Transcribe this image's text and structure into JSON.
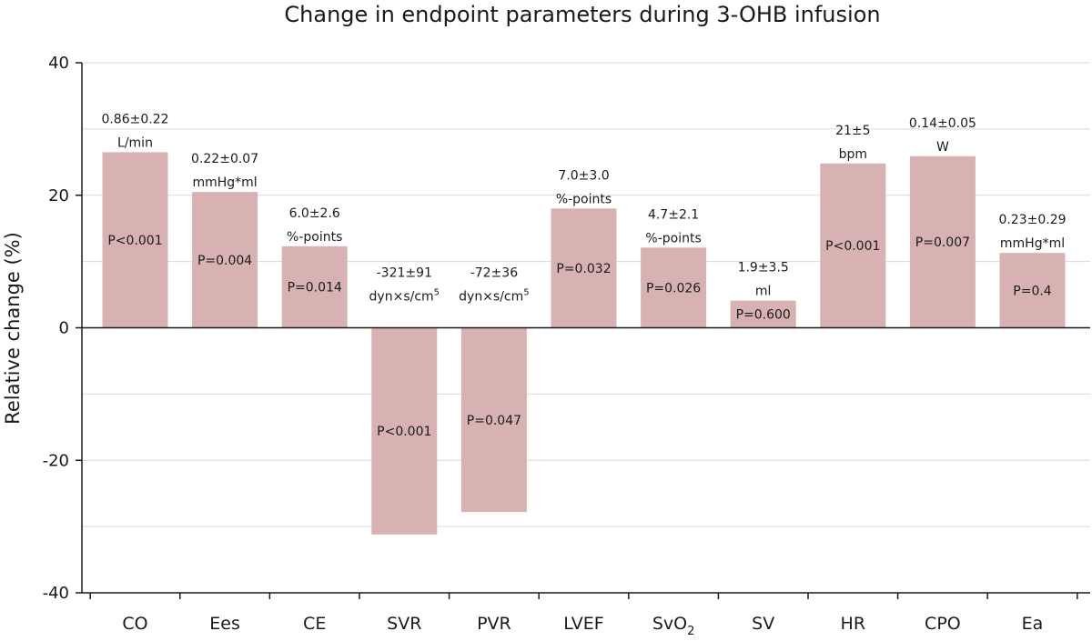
{
  "chart_data": {
    "type": "bar",
    "title": "Change in endpoint parameters during 3-OHB infusion",
    "ylabel": "Relative change (%)",
    "xlabel": "",
    "ylim": [
      -40,
      40
    ],
    "yticks": [
      -40,
      -20,
      0,
      20,
      40
    ],
    "ytick_labels": [
      "-40",
      "-20",
      "0",
      "20",
      "40"
    ],
    "grid": true,
    "bar_color": "#d8b2b2",
    "categories": [
      {
        "label": "CO",
        "sub": ""
      },
      {
        "label": "Ees",
        "sub": ""
      },
      {
        "label": "CE",
        "sub": ""
      },
      {
        "label": "SVR",
        "sub": ""
      },
      {
        "label": "PVR",
        "sub": ""
      },
      {
        "label": "LVEF",
        "sub": ""
      },
      {
        "label": "SvO",
        "sub": "2"
      },
      {
        "label": "SV",
        "sub": ""
      },
      {
        "label": "HR",
        "sub": ""
      },
      {
        "label": "CPO",
        "sub": ""
      },
      {
        "label": "Ea",
        "sub": ""
      }
    ],
    "values": [
      26.5,
      20.5,
      12.3,
      -31.2,
      -27.8,
      18.0,
      12.1,
      4.1,
      24.8,
      25.9,
      11.3
    ],
    "annotations": [
      {
        "line1": "0.86±0.22",
        "line2": "L/min",
        "sup": ""
      },
      {
        "line1": "0.22±0.07",
        "line2": "mmHg*ml",
        "sup": ""
      },
      {
        "line1": "6.0±2.6",
        "line2": "%-points",
        "sup": ""
      },
      {
        "line1": "-321±91",
        "line2": "dyn×s/cm",
        "sup": "5"
      },
      {
        "line1": "-72±36",
        "line2": "dyn×s/cm",
        "sup": "5"
      },
      {
        "line1": "7.0±3.0",
        "line2": "%-points",
        "sup": ""
      },
      {
        "line1": "4.7±2.1",
        "line2": "%-points",
        "sup": ""
      },
      {
        "line1": "1.9±3.5",
        "line2": "ml",
        "sup": ""
      },
      {
        "line1": "21±5",
        "line2": "bpm",
        "sup": ""
      },
      {
        "line1": "0.14±0.05",
        "line2": "W",
        "sup": ""
      },
      {
        "line1": "0.23±0.29",
        "line2": "mmHg*ml",
        "sup": ""
      }
    ],
    "p_values": [
      "P<0.001",
      "P=0.004",
      "P=0.014",
      "P<0.001",
      "P=0.047",
      "P=0.032",
      "P=0.026",
      "P=0.600",
      "P<0.001",
      "P=0.007",
      "P=0.4"
    ]
  }
}
